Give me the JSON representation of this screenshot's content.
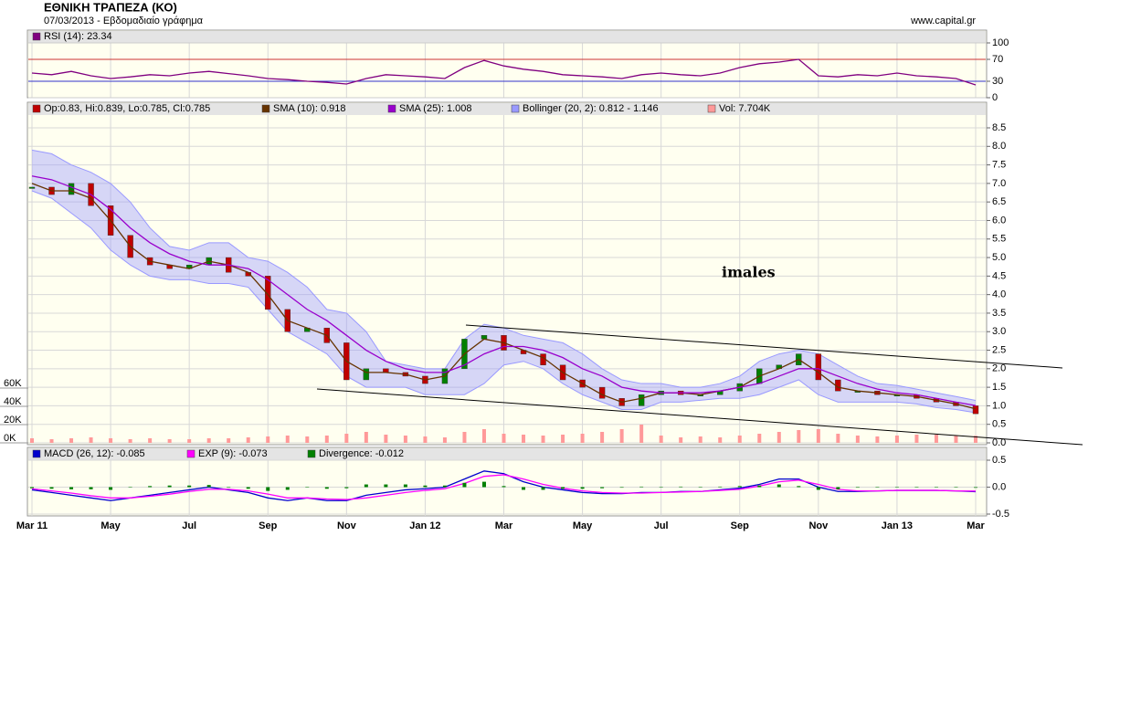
{
  "header": {
    "title": "ΕΘΝΙΚΗ ΤΡΑΠΕΖΑ (ΚΟ)",
    "subtitle": "07/03/2013 - Εβδομαδιαίο γράφημα",
    "source": "www.capital.gr"
  },
  "chart_data": [
    {
      "type": "rsi",
      "x": [
        0,
        0.5,
        1,
        1.5,
        2,
        2.5,
        3,
        3.5,
        4,
        4.5,
        5,
        5.5,
        6,
        6.5,
        7,
        7.5,
        8,
        8.5,
        9,
        9.5,
        10,
        10.5,
        11,
        11.5,
        12,
        12.5,
        13,
        13.5,
        14,
        14.5,
        15,
        15.5,
        16,
        16.5,
        17,
        17.5,
        18,
        18.5,
        19,
        19.5,
        20,
        20.5,
        21,
        21.5,
        22,
        22.5,
        23,
        23.5,
        24
      ],
      "xlim": [
        0,
        24
      ],
      "xticks": [
        0,
        2,
        4,
        6,
        8,
        10,
        12,
        14,
        16,
        18,
        20,
        22,
        24
      ],
      "series": [
        {
          "name": "RSI (14): 23.34",
          "color": "#800080",
          "values": [
            45,
            42,
            48,
            40,
            35,
            38,
            42,
            40,
            45,
            48,
            44,
            40,
            35,
            33,
            30,
            28,
            25,
            35,
            42,
            40,
            38,
            35,
            55,
            68,
            58,
            52,
            48,
            42,
            40,
            38,
            35,
            42,
            45,
            42,
            40,
            45,
            55,
            62,
            65,
            70,
            40,
            38,
            42,
            40,
            45,
            40,
            38,
            35,
            23.34
          ]
        }
      ],
      "ylim": [
        0,
        100
      ],
      "yticks": [
        0,
        30,
        70,
        100
      ],
      "grid": true,
      "grid_colors": [
        "#cccccc",
        "#3333cc",
        "#cc3333",
        "#cccccc"
      ]
    },
    {
      "type": "candlestick",
      "x": [
        0,
        0.5,
        1,
        1.5,
        2,
        2.5,
        3,
        3.5,
        4,
        4.5,
        5,
        5.5,
        6,
        6.5,
        7,
        7.5,
        8,
        8.5,
        9,
        9.5,
        10,
        10.5,
        11,
        11.5,
        12,
        12.5,
        13,
        13.5,
        14,
        14.5,
        15,
        15.5,
        16,
        16.5,
        17,
        17.5,
        18,
        18.5,
        19,
        19.5,
        20,
        20.5,
        21,
        21.5,
        22,
        22.5,
        23,
        23.5,
        24
      ],
      "xlim": [
        0,
        24
      ],
      "xticks": [
        0,
        2,
        4,
        6,
        8,
        10,
        12,
        14,
        16,
        18,
        20,
        22,
        24
      ],
      "ylim": [
        0,
        8.5
      ],
      "yticks": [
        {
          "value": 0,
          "label": "0.0"
        },
        0.5,
        {
          "value": 1,
          "label": "1.0"
        },
        1.5,
        {
          "value": 2,
          "label": "2.0"
        },
        2.5,
        {
          "value": 3,
          "label": "3.0"
        },
        3.5,
        {
          "value": 4,
          "label": "4.0"
        },
        4.5,
        {
          "value": 5,
          "label": "5.0"
        },
        5.5,
        {
          "value": 6,
          "label": "6.0"
        },
        6.5,
        {
          "value": 7,
          "label": "7.0"
        },
        7.5,
        {
          "value": 8,
          "label": "8.0"
        },
        8.5
      ],
      "y2lim": [
        0,
        345
      ],
      "y2ticks": [
        {
          "value": 0,
          "label": "0K"
        },
        {
          "value": 20,
          "label": "20K"
        },
        {
          "value": 40,
          "label": "40K"
        },
        {
          "value": 60,
          "label": "60K"
        }
      ],
      "grid": true,
      "annotation": "imales",
      "series": [
        {
          "name": "Op:0.83, Hi:0.839, Lo:0.785, Cl:0.785",
          "color": "#c00000",
          "up_color": "#008000",
          "values": [
            6.9,
            6.7,
            7.0,
            6.4,
            5.6,
            5.0,
            4.8,
            4.7,
            4.8,
            5.0,
            4.6,
            4.5,
            3.6,
            3.0,
            3.1,
            2.7,
            1.7,
            2.0,
            1.9,
            1.8,
            1.6,
            2.0,
            2.8,
            2.9,
            2.5,
            2.4,
            2.1,
            1.7,
            1.5,
            1.2,
            1.0,
            1.3,
            1.4,
            1.3,
            1.3,
            1.4,
            1.6,
            2.0,
            2.1,
            2.4,
            1.7,
            1.4,
            1.4,
            1.3,
            1.3,
            1.2,
            1.1,
            1.0,
            0.785
          ]
        },
        {
          "name": "SMA (10): 0.918",
          "color": "#663300",
          "values": [
            7.0,
            6.8,
            6.8,
            6.6,
            6.0,
            5.3,
            4.9,
            4.8,
            4.7,
            4.9,
            4.8,
            4.6,
            4.0,
            3.3,
            3.1,
            2.9,
            2.2,
            1.9,
            1.9,
            1.85,
            1.7,
            1.8,
            2.4,
            2.8,
            2.7,
            2.5,
            2.3,
            1.9,
            1.6,
            1.3,
            1.1,
            1.2,
            1.35,
            1.35,
            1.3,
            1.4,
            1.5,
            1.8,
            2.0,
            2.25,
            1.9,
            1.5,
            1.4,
            1.35,
            1.3,
            1.25,
            1.15,
            1.05,
            0.918
          ]
        },
        {
          "name": "SMA (25): 1.008",
          "color": "#9900cc",
          "values": [
            7.2,
            7.1,
            6.9,
            6.7,
            6.3,
            5.8,
            5.4,
            5.1,
            4.9,
            4.8,
            4.8,
            4.7,
            4.4,
            4.0,
            3.6,
            3.3,
            2.9,
            2.5,
            2.2,
            2.0,
            1.9,
            1.9,
            2.1,
            2.4,
            2.6,
            2.6,
            2.5,
            2.3,
            2.0,
            1.8,
            1.5,
            1.4,
            1.35,
            1.35,
            1.35,
            1.4,
            1.5,
            1.6,
            1.8,
            2.0,
            2.0,
            1.8,
            1.6,
            1.45,
            1.35,
            1.3,
            1.2,
            1.1,
            1.008
          ]
        },
        {
          "name": "Vol: 7.704K",
          "color": "#ff9999",
          "axis": "y2",
          "values": [
            5,
            4,
            5,
            6,
            5,
            4,
            5,
            4,
            4,
            5,
            5,
            6,
            7,
            8,
            7,
            8,
            10,
            12,
            9,
            8,
            7,
            6,
            12,
            15,
            10,
            9,
            8,
            9,
            10,
            12,
            15,
            20,
            8,
            6,
            7,
            6,
            8,
            10,
            12,
            14,
            15,
            10,
            8,
            7,
            8,
            9,
            9,
            8,
            7.704
          ]
        }
      ],
      "bollinger": {
        "name": "Bollinger (20, 2): 0.812 - 1.146",
        "color": "#9999ff",
        "upper": [
          7.9,
          7.8,
          7.5,
          7.3,
          7.0,
          6.5,
          5.8,
          5.3,
          5.2,
          5.4,
          5.4,
          5.0,
          4.9,
          4.6,
          4.2,
          3.6,
          3.5,
          3.0,
          2.2,
          2.1,
          2.0,
          2.0,
          2.8,
          3.2,
          3.1,
          2.9,
          2.8,
          2.7,
          2.4,
          2.0,
          1.7,
          1.6,
          1.6,
          1.5,
          1.5,
          1.6,
          1.8,
          2.2,
          2.4,
          2.5,
          2.4,
          2.1,
          1.8,
          1.6,
          1.55,
          1.45,
          1.35,
          1.25,
          1.146
        ],
        "lower": [
          6.8,
          6.6,
          6.2,
          5.8,
          5.2,
          4.8,
          4.5,
          4.4,
          4.4,
          4.3,
          4.3,
          4.2,
          3.6,
          3.0,
          2.7,
          2.4,
          1.8,
          1.5,
          1.5,
          1.5,
          1.3,
          1.3,
          1.3,
          1.6,
          2.1,
          2.2,
          2.0,
          1.6,
          1.3,
          1.1,
          0.9,
          0.9,
          1.1,
          1.1,
          1.15,
          1.2,
          1.2,
          1.3,
          1.5,
          1.7,
          1.3,
          1.1,
          1.1,
          1.1,
          1.1,
          1.05,
          0.95,
          0.9,
          0.812
        ]
      }
    },
    {
      "type": "macd",
      "x": [
        0,
        0.5,
        1,
        1.5,
        2,
        2.5,
        3,
        3.5,
        4,
        4.5,
        5,
        5.5,
        6,
        6.5,
        7,
        7.5,
        8,
        8.5,
        9,
        9.5,
        10,
        10.5,
        11,
        11.5,
        12,
        12.5,
        13,
        13.5,
        14,
        14.5,
        15,
        15.5,
        16,
        16.5,
        17,
        17.5,
        18,
        18.5,
        19,
        19.5,
        20,
        20.5,
        21,
        21.5,
        22,
        22.5,
        23,
        23.5,
        24
      ],
      "xlim": [
        0,
        24
      ],
      "xticks": [
        {
          "value": 0,
          "label": "Mar 11"
        },
        {
          "value": 2,
          "label": "May"
        },
        {
          "value": 4,
          "label": "Jul"
        },
        {
          "value": 6,
          "label": "Sep"
        },
        {
          "value": 8,
          "label": "Nov"
        },
        {
          "value": 10,
          "label": "Jan 12"
        },
        {
          "value": 12,
          "label": "Mar"
        },
        {
          "value": 14,
          "label": "May"
        },
        {
          "value": 16,
          "label": "Jul"
        },
        {
          "value": 18,
          "label": "Sep"
        },
        {
          "value": 20,
          "label": "Nov"
        },
        {
          "value": 22,
          "label": "Jan 13"
        },
        {
          "value": 24,
          "label": "Mar"
        }
      ],
      "ylim": [
        -0.5,
        0.5
      ],
      "yticks": [
        -0.5,
        {
          "value": 0,
          "label": "0.0"
        },
        0.5
      ],
      "grid": true,
      "series": [
        {
          "name": "MACD (26, 12): -0.085",
          "color": "#0000cc",
          "values": [
            -0.05,
            -0.1,
            -0.15,
            -0.2,
            -0.25,
            -0.2,
            -0.15,
            -0.1,
            -0.05,
            0,
            -0.05,
            -0.1,
            -0.2,
            -0.25,
            -0.2,
            -0.25,
            -0.25,
            -0.15,
            -0.1,
            -0.05,
            -0.03,
            0.0,
            0.15,
            0.3,
            0.25,
            0.1,
            0.0,
            -0.05,
            -0.1,
            -0.12,
            -0.12,
            -0.1,
            -0.1,
            -0.08,
            -0.08,
            -0.05,
            -0.02,
            0.05,
            0.15,
            0.15,
            0.0,
            -0.08,
            -0.08,
            -0.07,
            -0.06,
            -0.06,
            -0.06,
            -0.07,
            -0.085
          ]
        },
        {
          "name": "EXP (9): -0.073",
          "color": "#ff00ff",
          "values": [
            -0.03,
            -0.07,
            -0.11,
            -0.16,
            -0.2,
            -0.2,
            -0.17,
            -0.13,
            -0.08,
            -0.04,
            -0.04,
            -0.07,
            -0.13,
            -0.2,
            -0.2,
            -0.22,
            -0.23,
            -0.2,
            -0.15,
            -0.1,
            -0.06,
            -0.03,
            0.07,
            0.2,
            0.23,
            0.15,
            0.05,
            -0.02,
            -0.07,
            -0.1,
            -0.11,
            -0.11,
            -0.1,
            -0.09,
            -0.08,
            -0.06,
            -0.04,
            0.02,
            0.1,
            0.13,
            0.05,
            -0.04,
            -0.07,
            -0.07,
            -0.06,
            -0.06,
            -0.06,
            -0.07,
            -0.073
          ]
        },
        {
          "name": "Divergence: -0.012",
          "color": "#008000",
          "bars": true,
          "values": [
            -0.02,
            -0.03,
            -0.04,
            -0.04,
            -0.05,
            0,
            0.02,
            0.03,
            0.03,
            0.04,
            -0.01,
            -0.03,
            -0.07,
            -0.05,
            0,
            -0.03,
            -0.02,
            0.05,
            0.05,
            0.05,
            0.03,
            0.03,
            0.08,
            0.1,
            0.02,
            -0.05,
            -0.05,
            -0.03,
            -0.03,
            -0.02,
            -0.01,
            0.01,
            0,
            0.01,
            0,
            0.01,
            0.02,
            0.03,
            0.05,
            0.02,
            -0.05,
            -0.04,
            -0.01,
            0,
            0,
            0,
            0,
            0,
            -0.012
          ]
        }
      ]
    }
  ]
}
